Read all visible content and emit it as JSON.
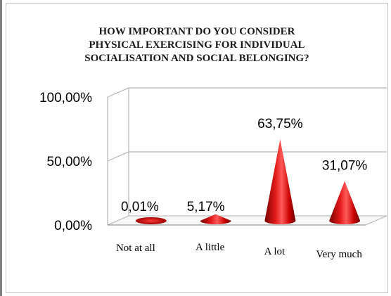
{
  "chart_data": {
    "type": "bar",
    "title_lines": [
      "HOW IMPORTANT  DO YOU CONSIDER",
      "PHYSICAL EXERCISING  FOR INDIVIDUAL",
      "SOCIALISATION  AND SOCIAL BELONGING?"
    ],
    "categories": [
      "Not at all",
      "A little",
      "A lot",
      "Very much"
    ],
    "values": [
      0.01,
      5.17,
      63.75,
      31.07
    ],
    "value_labels": [
      "0,01%",
      "5,17%",
      "63,75%",
      "31,07%"
    ],
    "ytick_labels": [
      "0,00%",
      "50,00%",
      "100,00%"
    ],
    "yticks": [
      0,
      50,
      100
    ],
    "ylim": [
      0,
      100
    ],
    "mark_shape": "3d-cone",
    "grid": true,
    "colors": {
      "cone": "#c0000a",
      "cone_dark": "#6e0000",
      "cone_light": "#ff4a4a",
      "grid": "#b3b3b3"
    }
  }
}
